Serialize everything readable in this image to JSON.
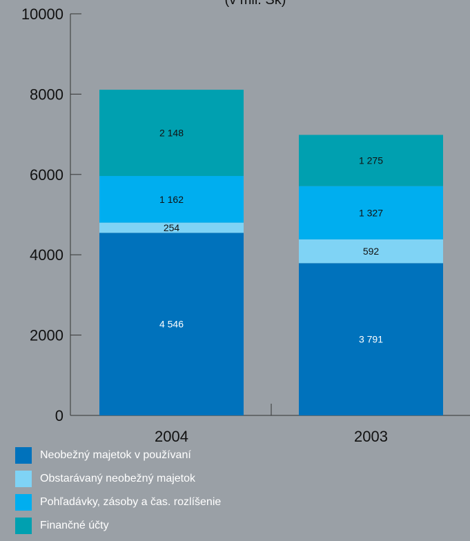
{
  "chart_data": {
    "type": "bar",
    "stacked": true,
    "title": "(v mil. Sk)",
    "categories": [
      "2004",
      "2003"
    ],
    "ylim": [
      0,
      10000
    ],
    "yticks": [
      0,
      2000,
      4000,
      6000,
      8000,
      10000
    ],
    "grid": false,
    "legend_position": "bottom-left",
    "series": [
      {
        "name": "Neobežný majetok v používaní",
        "values": [
          4546,
          3791
        ],
        "labels": [
          "4 546",
          "3 791"
        ],
        "color": "#0072bc",
        "label_color": "#ffffff"
      },
      {
        "name": "Obstarávaný neobežný majetok",
        "values": [
          254,
          592
        ],
        "labels": [
          "254",
          "592"
        ],
        "color": "#7fd3f5",
        "label_color": "#111111"
      },
      {
        "name": "Pohľadávky, zásoby a čas. rozlíšenie",
        "values": [
          1162,
          1327
        ],
        "labels": [
          "1 162",
          "1 327"
        ],
        "color": "#00aeef",
        "label_color": "#111111"
      },
      {
        "name": "Finančné účty",
        "values": [
          2148,
          1275
        ],
        "labels": [
          "2 148",
          "1 275"
        ],
        "color": "#00a0b0",
        "label_color": "#111111"
      }
    ]
  }
}
